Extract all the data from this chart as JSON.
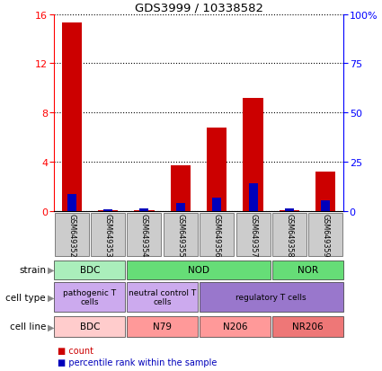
{
  "title": "GDS3999 / 10338582",
  "samples": [
    "GSM649352",
    "GSM649353",
    "GSM649354",
    "GSM649355",
    "GSM649356",
    "GSM649357",
    "GSM649358",
    "GSM649359"
  ],
  "counts": [
    15.3,
    0.08,
    0.08,
    3.7,
    6.8,
    9.2,
    0.08,
    3.2
  ],
  "percentile_values": [
    8.5,
    1.0,
    1.3,
    4.0,
    7.0,
    14.0,
    1.3,
    5.5
  ],
  "ylim_left": [
    0,
    16
  ],
  "ylim_right": [
    0,
    100
  ],
  "yticks_left": [
    0,
    4,
    8,
    12,
    16
  ],
  "yticks_right": [
    0,
    25,
    50,
    75,
    100
  ],
  "ytick_labels_right": [
    "0",
    "25",
    "50",
    "75",
    "100%"
  ],
  "bar_color_count": "#cc0000",
  "bar_color_pct": "#0000bb",
  "strain_groups": [
    {
      "label": "BDC",
      "start": 0,
      "end": 2,
      "color": "#aaeebb"
    },
    {
      "label": "NOD",
      "start": 2,
      "end": 6,
      "color": "#66dd77"
    },
    {
      "label": "NOR",
      "start": 6,
      "end": 8,
      "color": "#66dd77"
    }
  ],
  "cell_type_groups": [
    {
      "label": "pathogenic T\ncells",
      "start": 0,
      "end": 2,
      "color": "#ccaaee"
    },
    {
      "label": "neutral control T\ncells",
      "start": 2,
      "end": 4,
      "color": "#ccaaee"
    },
    {
      "label": "regulatory T cells",
      "start": 4,
      "end": 8,
      "color": "#9977cc"
    }
  ],
  "cell_line_groups": [
    {
      "label": "BDC",
      "start": 0,
      "end": 2,
      "color": "#ffcccc"
    },
    {
      "label": "N79",
      "start": 2,
      "end": 4,
      "color": "#ff9999"
    },
    {
      "label": "N206",
      "start": 4,
      "end": 6,
      "color": "#ff9999"
    },
    {
      "label": "NR206",
      "start": 6,
      "end": 8,
      "color": "#ee7777"
    }
  ],
  "tick_label_bg": "#cccccc",
  "plot_bg": "#ffffff",
  "legend_count_label": "count",
  "legend_pct_label": "percentile rank within the sample"
}
